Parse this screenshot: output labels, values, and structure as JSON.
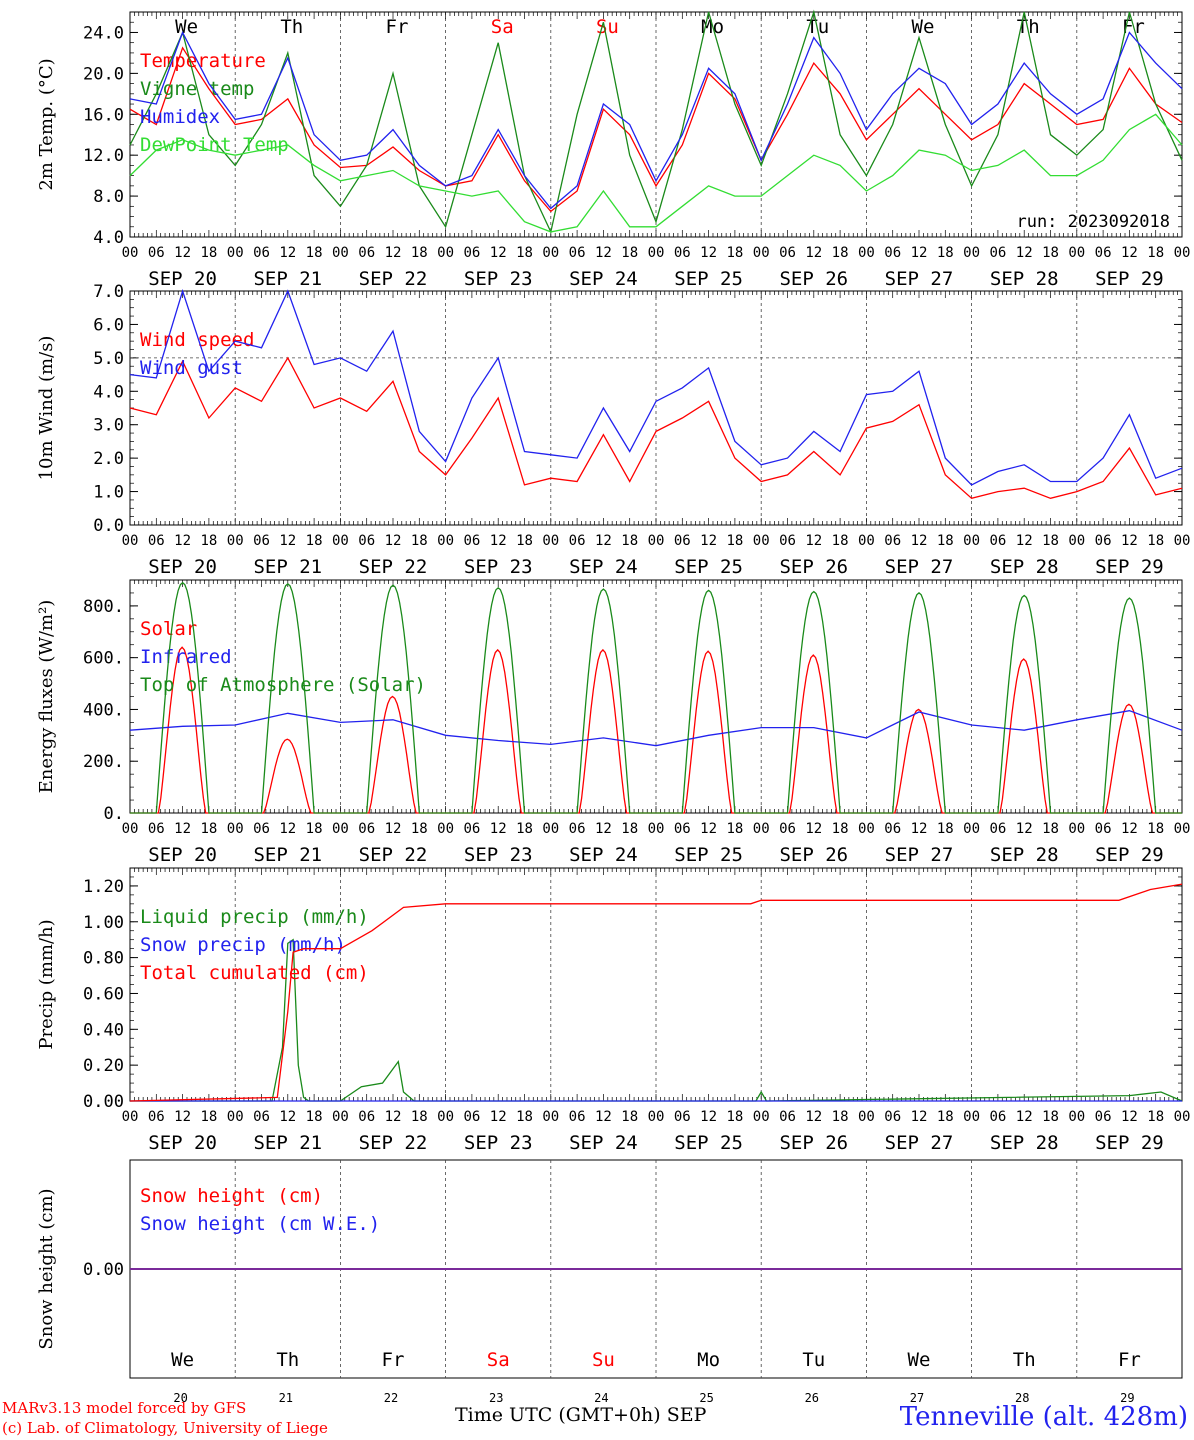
{
  "footer": {
    "model": "MARv3.13 model forced by GFS",
    "lab": "(c) Lab. of Climatology, University of Liege",
    "time_label": "Time UTC (GMT+0h) SEP",
    "station": "Tenneville (alt. 428m)"
  },
  "colors": {
    "red": "#ff0000",
    "dark_green": "#1a8a1a",
    "blue": "#2222ee",
    "light_green": "#33dd33",
    "purple": "#7a2a9a"
  },
  "x_axis": {
    "hour_ticks": [
      "00",
      "06",
      "12",
      "18"
    ],
    "end_tick": "00",
    "date_labels": [
      "SEP 20",
      "SEP 21",
      "SEP 22",
      "SEP 23",
      "SEP 24",
      "SEP 25",
      "SEP 26",
      "SEP 27",
      "SEP 28",
      "SEP 29"
    ],
    "weekdays": [
      "We",
      "Th",
      "Fr",
      "Sa",
      "Su",
      "Mo",
      "Tu",
      "We",
      "Th",
      "Fr"
    ],
    "weekend_index": [
      3,
      4
    ],
    "day_numbers": [
      "20",
      "21",
      "22",
      "23",
      "24",
      "25",
      "26",
      "27",
      "28",
      "29"
    ]
  },
  "chart_data": [
    {
      "type": "line",
      "ylabel": "2m Temp. (°C)",
      "yticks": [
        "4.0",
        "8.0",
        "12.0",
        "16.0",
        "20.0",
        "24.0"
      ],
      "ylim": [
        4,
        26
      ],
      "annotation": "run: 2023092018",
      "x_days": [
        0,
        0.25,
        0.5,
        0.75,
        1,
        1.25,
        1.5,
        1.75,
        2,
        2.25,
        2.5,
        2.75,
        3,
        3.25,
        3.5,
        3.75,
        4,
        4.25,
        4.5,
        4.75,
        5,
        5.25,
        5.5,
        5.75,
        6,
        6.25,
        6.5,
        6.75,
        7,
        7.25,
        7.5,
        7.75,
        8,
        8.25,
        8.5,
        8.75,
        9,
        9.25,
        9.5,
        9.75,
        10
      ],
      "series": [
        {
          "name": "Temperature",
          "color": "red",
          "values": [
            16.5,
            15.0,
            22.5,
            18.5,
            15.0,
            15.5,
            17.5,
            13.0,
            10.8,
            11.0,
            12.8,
            10.5,
            9.0,
            9.5,
            14.0,
            9.5,
            6.5,
            8.5,
            16.5,
            14.0,
            9.0,
            13.0,
            20.0,
            17.5,
            11.5,
            16.0,
            21.0,
            18.0,
            13.5,
            16.0,
            18.5,
            16.0,
            13.5,
            15.0,
            19.0,
            17.0,
            15.0,
            15.5,
            20.5,
            17.0,
            15.2
          ]
        },
        {
          "name": "Vigne temp",
          "color": "dark_green",
          "values": [
            13.0,
            18.0,
            24.0,
            14.0,
            11.0,
            15.0,
            22.0,
            10.0,
            7.0,
            11.0,
            20.0,
            9.0,
            5.0,
            14.0,
            23.0,
            10.0,
            4.5,
            16.0,
            25.0,
            12.0,
            5.5,
            14.5,
            27.0,
            17.0,
            11.0,
            18.0,
            26.0,
            14.0,
            10.0,
            15.0,
            23.5,
            15.0,
            9.0,
            14.0,
            26.0,
            14.0,
            12.0,
            14.5,
            26.5,
            17.0,
            11.5
          ]
        },
        {
          "name": "Humidex",
          "color": "blue",
          "values": [
            17.5,
            17.0,
            24.0,
            19.0,
            15.5,
            16.0,
            21.5,
            14.0,
            11.5,
            12.0,
            14.5,
            11.0,
            9.0,
            10.0,
            14.5,
            10.0,
            6.8,
            9.0,
            17.0,
            15.0,
            9.5,
            14.0,
            20.5,
            18.0,
            11.5,
            17.0,
            23.5,
            20.0,
            14.5,
            18.0,
            20.5,
            19.0,
            15.0,
            17.0,
            21.0,
            18.0,
            16.0,
            17.5,
            24.0,
            21.0,
            18.5
          ]
        },
        {
          "name": "DewPoint Temp",
          "color": "light_green",
          "values": [
            10.0,
            12.5,
            13.5,
            12.5,
            12.0,
            12.5,
            13.0,
            11.0,
            9.5,
            10.0,
            10.5,
            9.0,
            8.5,
            8.0,
            8.5,
            5.5,
            4.5,
            5.0,
            8.5,
            5.0,
            5.0,
            7.0,
            9.0,
            8.0,
            8.0,
            10.0,
            12.0,
            11.0,
            8.5,
            10.0,
            12.5,
            12.0,
            10.5,
            11.0,
            12.5,
            10.0,
            10.0,
            11.5,
            14.5,
            16.0,
            13.0
          ]
        }
      ]
    },
    {
      "type": "line",
      "ylabel": "10m Wind (m/s)",
      "yticks": [
        "0.0",
        "1.0",
        "2.0",
        "3.0",
        "4.0",
        "5.0",
        "6.0",
        "7.0"
      ],
      "ylim": [
        0,
        7
      ],
      "ref_line": 5.0,
      "x_days": [
        0,
        0.25,
        0.5,
        0.75,
        1,
        1.25,
        1.5,
        1.75,
        2,
        2.25,
        2.5,
        2.75,
        3,
        3.25,
        3.5,
        3.75,
        4,
        4.25,
        4.5,
        4.75,
        5,
        5.25,
        5.5,
        5.75,
        6,
        6.25,
        6.5,
        6.75,
        7,
        7.25,
        7.5,
        7.75,
        8,
        8.25,
        8.5,
        8.75,
        9,
        9.25,
        9.5,
        9.75,
        10
      ],
      "series": [
        {
          "name": "Wind speed",
          "color": "red",
          "values": [
            3.5,
            3.3,
            4.9,
            3.2,
            4.1,
            3.7,
            5.0,
            3.5,
            3.8,
            3.4,
            4.3,
            2.2,
            1.5,
            2.6,
            3.8,
            1.2,
            1.4,
            1.3,
            2.7,
            1.3,
            2.8,
            3.2,
            3.7,
            2.0,
            1.3,
            1.5,
            2.2,
            1.5,
            2.9,
            3.1,
            3.6,
            1.5,
            0.8,
            1.0,
            1.1,
            0.8,
            1.0,
            1.3,
            2.3,
            0.9,
            1.1
          ]
        },
        {
          "name": "Wind gust",
          "color": "blue",
          "values": [
            4.5,
            4.4,
            7.0,
            4.6,
            5.5,
            5.3,
            7.0,
            4.8,
            5.0,
            4.6,
            5.8,
            2.8,
            1.9,
            3.8,
            5.0,
            2.2,
            2.1,
            2.0,
            3.5,
            2.2,
            3.7,
            4.1,
            4.7,
            2.5,
            1.8,
            2.0,
            2.8,
            2.2,
            3.9,
            4.0,
            4.6,
            2.0,
            1.2,
            1.6,
            1.8,
            1.3,
            1.3,
            2.0,
            3.3,
            1.4,
            1.7
          ]
        }
      ]
    },
    {
      "type": "line",
      "ylabel": "Energy fluxes (W/m²)",
      "yticks": [
        "0.",
        "200.",
        "400.",
        "600.",
        "800."
      ],
      "ylim": [
        0,
        900
      ],
      "series": [
        {
          "name": "Solar",
          "color": "red",
          "daily_peak": [
            640,
            285,
            450,
            630,
            630,
            625,
            610,
            400,
            595,
            420
          ]
        },
        {
          "name": "Infrared",
          "color": "blue",
          "x_days": [
            0,
            0.5,
            1,
            1.5,
            2,
            2.5,
            3,
            3.5,
            4,
            4.5,
            5,
            5.5,
            6,
            6.5,
            7,
            7.5,
            8,
            8.5,
            9,
            9.5,
            10
          ],
          "values": [
            320,
            335,
            340,
            385,
            350,
            360,
            300,
            280,
            265,
            290,
            260,
            300,
            330,
            330,
            290,
            390,
            340,
            320,
            360,
            395,
            320
          ]
        },
        {
          "name": "Top of Atmosphere (Solar)",
          "color": "dark_green",
          "daily_peak": [
            890,
            885,
            880,
            870,
            865,
            860,
            855,
            850,
            840,
            830
          ]
        }
      ]
    },
    {
      "type": "line",
      "ylabel": "Precip (mm/h)",
      "yticks": [
        "0.00",
        "0.20",
        "0.40",
        "0.60",
        "0.80",
        "1.00",
        "1.20"
      ],
      "ylim": [
        0,
        1.3
      ],
      "series": [
        {
          "name": "Liquid precip (mm/h)",
          "color": "dark_green",
          "x_days": [
            0,
            1.35,
            1.45,
            1.5,
            1.55,
            1.6,
            1.65,
            1.7,
            2.0,
            2.2,
            2.4,
            2.55,
            2.6,
            2.7,
            3.0,
            5.95,
            6.0,
            6.05,
            9.5,
            9.8,
            10
          ],
          "values": [
            0,
            0,
            0.3,
            0.88,
            0.9,
            0.2,
            0.02,
            0,
            0,
            0.08,
            0.1,
            0.22,
            0.05,
            0,
            0,
            0,
            0.05,
            0,
            0.03,
            0.05,
            0
          ]
        },
        {
          "name": "Snow precip (mm/h)",
          "color": "blue",
          "x_days": [
            0,
            10
          ],
          "values": [
            0,
            0
          ]
        },
        {
          "name": "Total cumulated (cm)",
          "color": "red",
          "x_days": [
            0,
            1.4,
            1.5,
            1.55,
            1.65,
            2.0,
            2.3,
            2.6,
            3.0,
            4.0,
            5.9,
            6.0,
            7.0,
            8.0,
            9.4,
            9.7,
            10
          ],
          "values": [
            0,
            0.02,
            0.5,
            0.83,
            0.85,
            0.85,
            0.95,
            1.08,
            1.1,
            1.1,
            1.1,
            1.12,
            1.12,
            1.12,
            1.12,
            1.18,
            1.21
          ]
        }
      ]
    },
    {
      "type": "line",
      "ylabel": "Snow height (cm)",
      "yticks": [
        "0.00"
      ],
      "ylim": [
        -1,
        1
      ],
      "series": [
        {
          "name": "Snow height (cm)",
          "color": "red",
          "x_days": [
            0,
            10
          ],
          "values": [
            0,
            0
          ]
        },
        {
          "name": "Snow height (cm W.E.)",
          "color": "blue",
          "x_days": [
            0,
            10
          ],
          "values": [
            0,
            0
          ]
        }
      ]
    }
  ]
}
